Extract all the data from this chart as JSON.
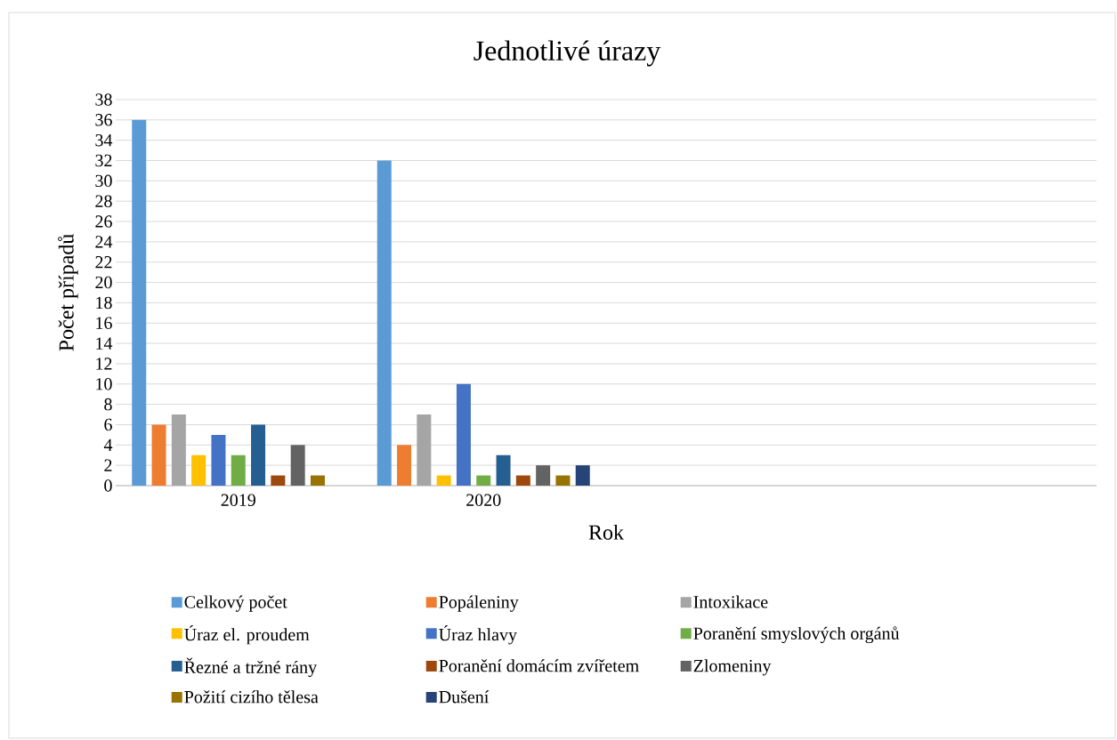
{
  "chart_data": {
    "type": "bar",
    "title": "Jednotlivé úrazy",
    "xlabel": "Rok",
    "ylabel": "Počet případů",
    "categories": [
      "2019",
      "2020",
      null,
      null
    ],
    "series": [
      {
        "name": "Celkový počet",
        "color": "#5b9bd5",
        "values": [
          36,
          32,
          null,
          null
        ]
      },
      {
        "name": "Popáleniny",
        "color": "#ed7d31",
        "values": [
          6,
          4,
          null,
          null
        ]
      },
      {
        "name": "Intoxikace",
        "color": "#a5a5a5",
        "values": [
          7,
          7,
          null,
          null
        ]
      },
      {
        "name": "Úraz el. proudem",
        "color": "#ffc000",
        "values": [
          3,
          1,
          null,
          null
        ]
      },
      {
        "name": "Úraz hlavy",
        "color": "#4472c4",
        "values": [
          5,
          10,
          null,
          null
        ]
      },
      {
        "name": "Poranění smyslových orgánů",
        "color": "#70ad47",
        "values": [
          3,
          1,
          null,
          null
        ]
      },
      {
        "name": "Řezné a tržné rány",
        "color": "#255e91",
        "values": [
          6,
          3,
          null,
          null
        ]
      },
      {
        "name": "Poranění domácím zvířetem",
        "color": "#9e480e",
        "values": [
          1,
          1,
          null,
          null
        ]
      },
      {
        "name": "Zlomeniny",
        "color": "#636363",
        "values": [
          4,
          2,
          null,
          null
        ]
      },
      {
        "name": "Požití cizího tělesa",
        "color": "#997300",
        "values": [
          1,
          1,
          null,
          null
        ]
      },
      {
        "name": "Dušení",
        "color": "#264478",
        "values": [
          null,
          2,
          null,
          null
        ]
      }
    ],
    "ylim": [
      0,
      38
    ],
    "yticks": [
      0,
      2,
      4,
      6,
      8,
      10,
      12,
      14,
      16,
      18,
      20,
      22,
      24,
      26,
      28,
      30,
      32,
      34,
      36,
      38
    ],
    "grid": "y",
    "legend": "bottom"
  }
}
